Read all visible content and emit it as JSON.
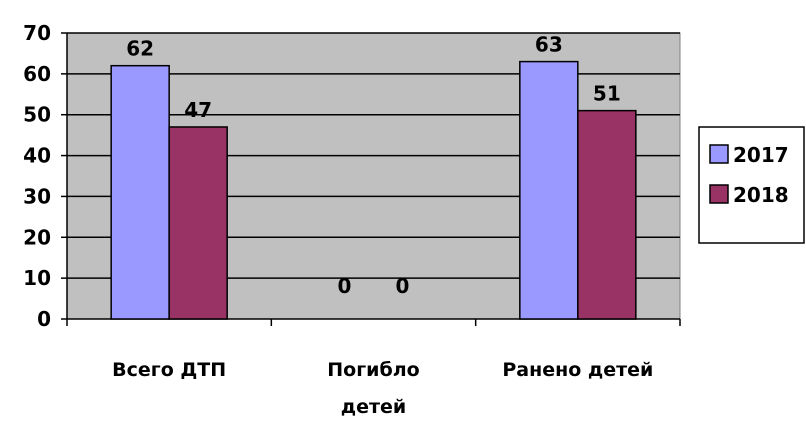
{
  "chart_data": {
    "type": "bar",
    "categories": [
      [
        "Всего ДТП"
      ],
      [
        "Погибло",
        "детей"
      ],
      [
        "Ранено детей"
      ]
    ],
    "series": [
      {
        "name": "2017",
        "color": "#9999ff",
        "values": [
          62,
          0,
          63
        ]
      },
      {
        "name": "2018",
        "color": "#993366",
        "values": [
          47,
          0,
          51
        ]
      }
    ],
    "ylim": [
      0,
      70
    ],
    "yticks": [
      0,
      10,
      20,
      30,
      40,
      50,
      60,
      70
    ],
    "grid": true,
    "plot_background": "#c0c0c0",
    "legend": "right",
    "title": "",
    "xlabel": "",
    "ylabel": ""
  }
}
